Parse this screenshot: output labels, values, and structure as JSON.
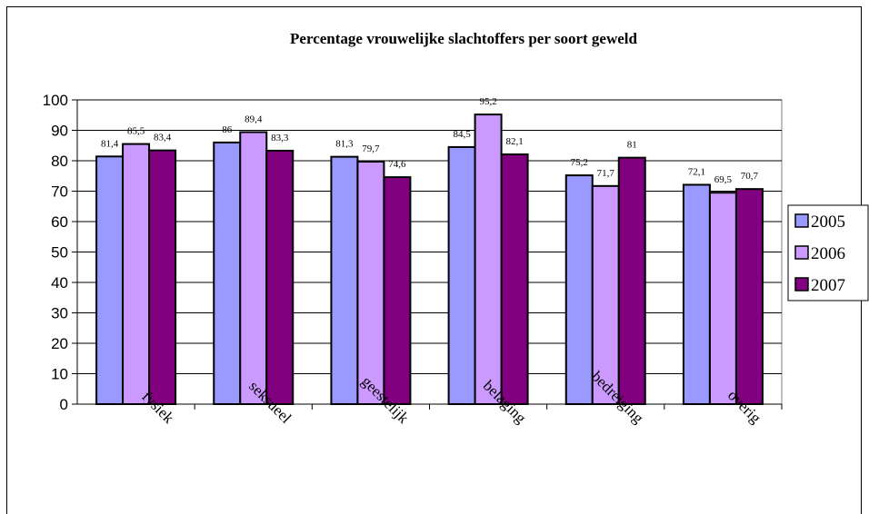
{
  "chart_data": {
    "type": "bar",
    "title": "Percentage vrouwelijke slachtoffers per soort geweld",
    "categories": [
      "fysiek",
      "seksueel",
      "geestelijk",
      "belaging",
      "bedreiging",
      "overig"
    ],
    "series": [
      {
        "name": "2005",
        "color": "#9999ff",
        "values": [
          81.4,
          86,
          81.3,
          84.5,
          75.2,
          72.1
        ],
        "labels": [
          "81,4",
          "86",
          "81,3",
          "84,5",
          "75,2",
          "72,1"
        ]
      },
      {
        "name": "2006",
        "color": "#cc99ff",
        "values": [
          85.5,
          89.4,
          79.7,
          95.2,
          71.7,
          69.5
        ],
        "labels": [
          "85,5",
          "89,4",
          "79,7",
          "95,2",
          "71,7",
          "69,5"
        ]
      },
      {
        "name": "2007",
        "color": "#800080",
        "values": [
          83.4,
          83.3,
          74.6,
          82.1,
          81,
          70.7
        ],
        "labels": [
          "83,4",
          "83,3",
          "74,6",
          "82,1",
          "81",
          "70,7"
        ]
      }
    ],
    "ylim": [
      0,
      100
    ],
    "yticks": [
      "0",
      "10",
      "20",
      "30",
      "40",
      "50",
      "60",
      "70",
      "80",
      "90",
      "100"
    ],
    "grid": true,
    "legend_position": "right"
  }
}
